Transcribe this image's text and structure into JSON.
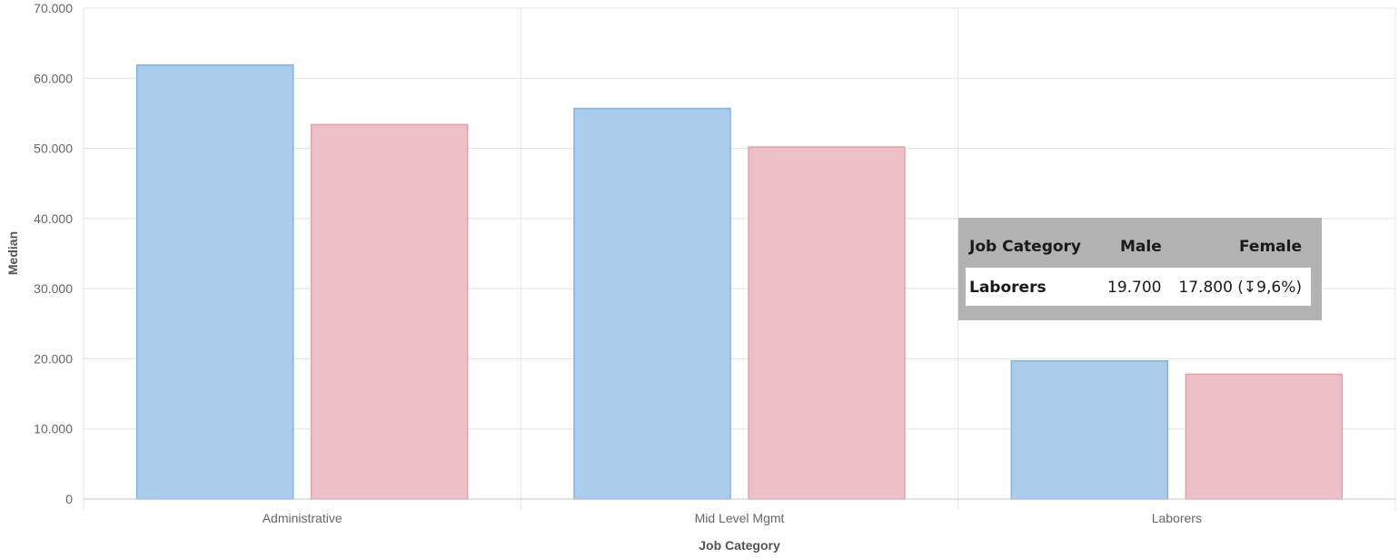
{
  "chart_data": {
    "type": "bar",
    "title": "",
    "xlabel": "Job Category",
    "ylabel": "Median",
    "categories": [
      "Administrative",
      "Mid Level Mgmt",
      "Laborers"
    ],
    "series": [
      {
        "name": "Male",
        "values": [
          61900,
          55700,
          19700
        ]
      },
      {
        "name": "Female",
        "values": [
          53400,
          50200,
          17800
        ]
      }
    ],
    "ylim": [
      0,
      70000
    ],
    "yticks": [
      "0",
      "10.000",
      "20.000",
      "30.000",
      "40.000",
      "50.000",
      "60.000",
      "70.000"
    ],
    "grid": true,
    "colors": {
      "male_fill": "#aacdec",
      "male_stroke": "#7fb3e3",
      "female_fill": "#ecc0c6",
      "female_stroke": "#e6a0aa",
      "grid": "#e3e3e3",
      "axis": "#c8c8c8"
    }
  },
  "tooltip": {
    "header": {
      "category": "Job Category",
      "male": "Male",
      "female": "Female"
    },
    "row": {
      "category": "Laborers",
      "male": "19.700",
      "female": "17.800 (↧9,6%)"
    }
  }
}
